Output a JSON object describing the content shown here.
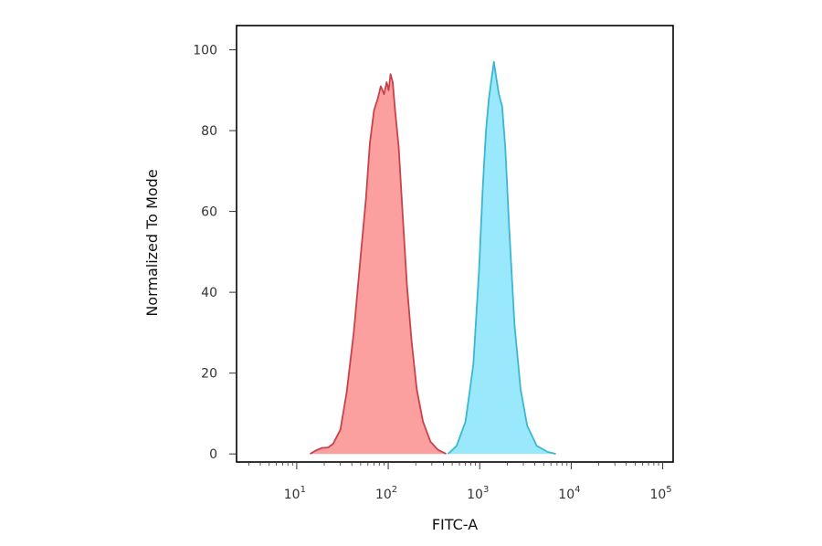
{
  "chart_data": {
    "type": "area",
    "xlabel": "FITC-A",
    "ylabel": "Normalized To Mode",
    "x_scale": "log",
    "xlim": [
      2.2,
      130000
    ],
    "ylim": [
      -2,
      106
    ],
    "x_ticks": [
      {
        "value": 10,
        "base": "10",
        "exp": "1"
      },
      {
        "value": 100,
        "base": "10",
        "exp": "2"
      },
      {
        "value": 1000,
        "base": "10",
        "exp": "3"
      },
      {
        "value": 10000,
        "base": "10",
        "exp": "4"
      },
      {
        "value": 100000,
        "base": "10",
        "exp": "5"
      }
    ],
    "y_ticks": [
      {
        "value": 0,
        "label": "0"
      },
      {
        "value": 20,
        "label": "20"
      },
      {
        "value": 40,
        "label": "40"
      },
      {
        "value": 60,
        "label": "60"
      },
      {
        "value": 80,
        "label": "80"
      },
      {
        "value": 100,
        "label": "100"
      }
    ],
    "grid": false,
    "series": [
      {
        "fill": "#fb9f9f",
        "stroke": "#c9424b",
        "points": [
          [
            14,
            0
          ],
          [
            16,
            0.8
          ],
          [
            19,
            1.5
          ],
          [
            22,
            1.6
          ],
          [
            25,
            2.5
          ],
          [
            30,
            6
          ],
          [
            35,
            15
          ],
          [
            42,
            30
          ],
          [
            50,
            49
          ],
          [
            57,
            63
          ],
          [
            63,
            77
          ],
          [
            70,
            85
          ],
          [
            77,
            88
          ],
          [
            83,
            91
          ],
          [
            90,
            89
          ],
          [
            96,
            92
          ],
          [
            101,
            90
          ],
          [
            106,
            94
          ],
          [
            112,
            92
          ],
          [
            119,
            85
          ],
          [
            130,
            76
          ],
          [
            145,
            58
          ],
          [
            160,
            42
          ],
          [
            180,
            28
          ],
          [
            205,
            16
          ],
          [
            240,
            8
          ],
          [
            290,
            3
          ],
          [
            350,
            1
          ],
          [
            430,
            0
          ]
        ]
      },
      {
        "fill": "#9ae8fb",
        "stroke": "#3cb7d1",
        "points": [
          [
            450,
            0
          ],
          [
            560,
            2
          ],
          [
            700,
            8
          ],
          [
            850,
            22
          ],
          [
            980,
            45
          ],
          [
            1080,
            66
          ],
          [
            1170,
            80
          ],
          [
            1260,
            88
          ],
          [
            1350,
            93
          ],
          [
            1430,
            97
          ],
          [
            1520,
            93
          ],
          [
            1620,
            89
          ],
          [
            1760,
            86
          ],
          [
            1900,
            76
          ],
          [
            2100,
            56
          ],
          [
            2400,
            32
          ],
          [
            2800,
            16
          ],
          [
            3300,
            7
          ],
          [
            4200,
            2
          ],
          [
            5500,
            0.5
          ],
          [
            6800,
            0
          ]
        ]
      }
    ]
  }
}
